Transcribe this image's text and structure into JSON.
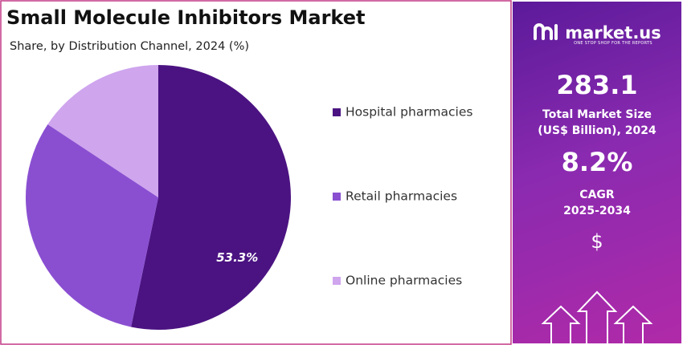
{
  "chart_data": {
    "type": "pie",
    "title": "Small Molecule Inhibitors Market",
    "subtitle": "Share, by Distribution Channel, 2024 (%)",
    "categories": [
      "Hospital pharmacies",
      "Retail pharmacies",
      "Online pharmacies"
    ],
    "values": [
      53.3,
      31.0,
      15.7
    ],
    "value_labels": [
      "53.3%",
      null,
      null
    ],
    "colors": [
      "#4b1382",
      "#8a4fd1",
      "#cfa5ee"
    ]
  },
  "sidebar": {
    "brand": "market.us",
    "tagline": "ONE STOP SHOP FOR THE REPORTS",
    "market_size": "283.1",
    "market_size_label": [
      "Total Market Size",
      "(US$ Billion), 2024"
    ],
    "cagr": "8.2%",
    "cagr_label": "CAGR",
    "period": "2025-2034",
    "currency": "$"
  }
}
